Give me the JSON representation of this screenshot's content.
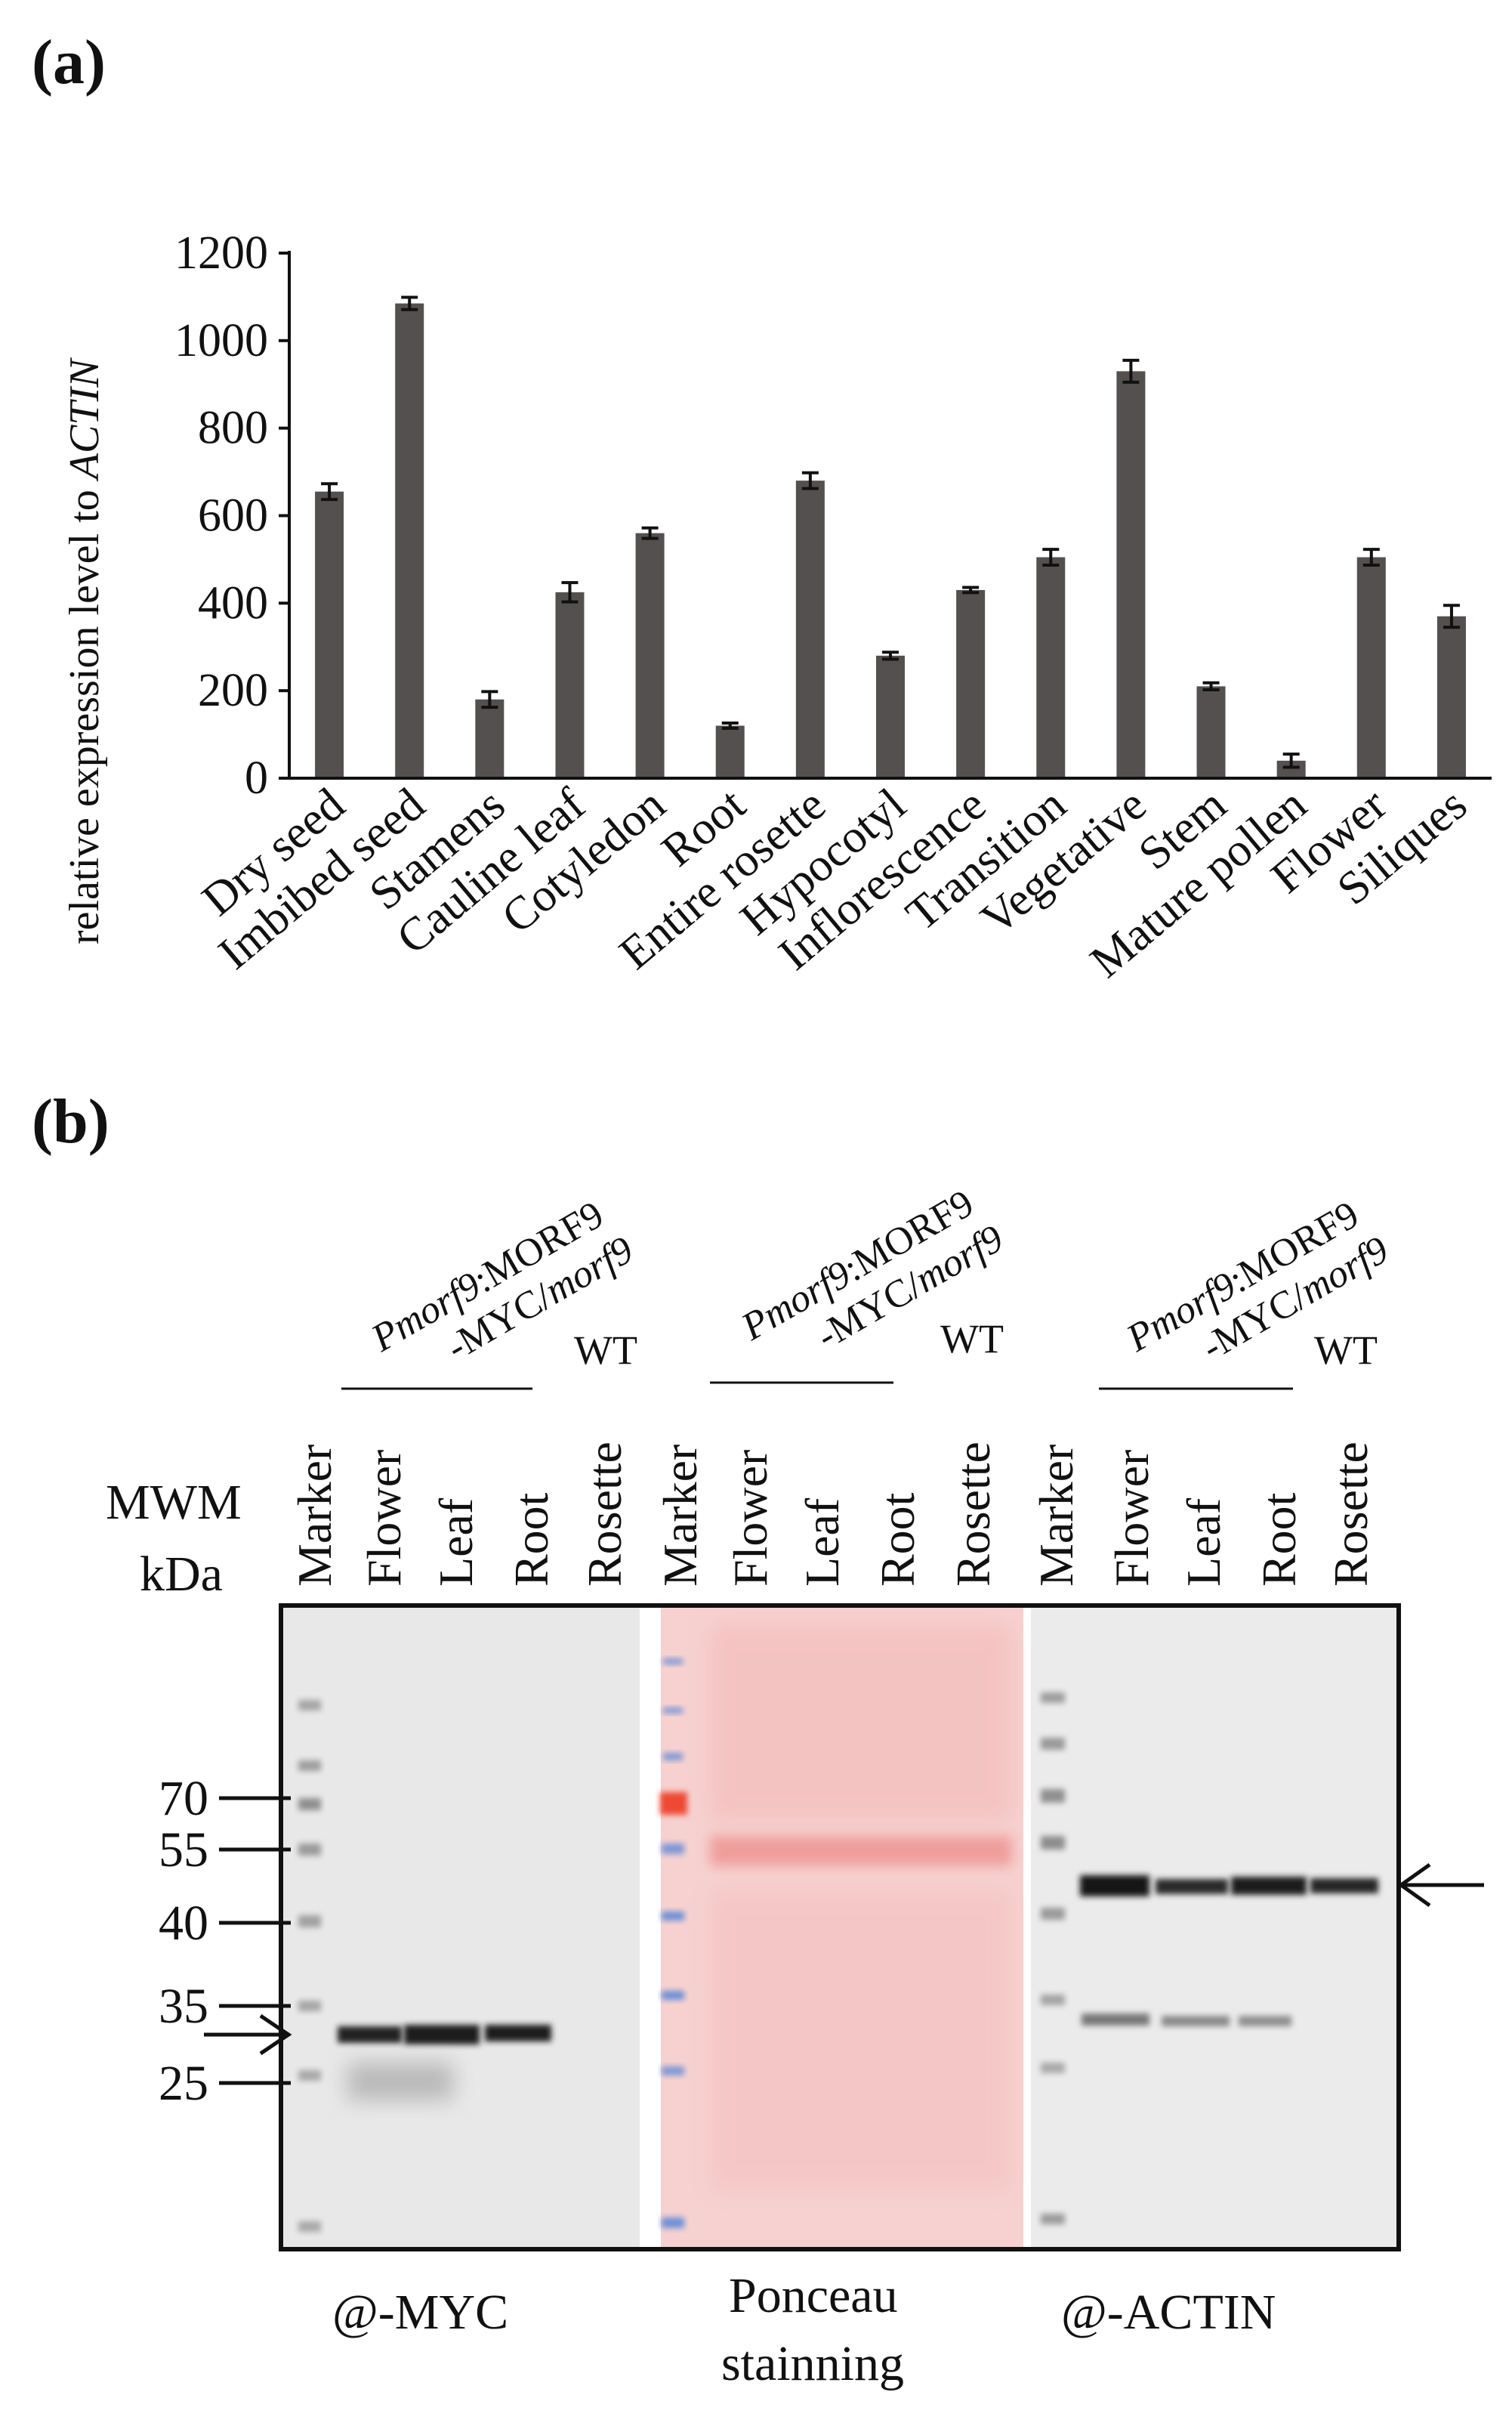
{
  "panel_a": {
    "label": "(a)",
    "ylabel_prefix": "relative expression level to ",
    "ylabel_gene": "ACTIN"
  },
  "chart_data": {
    "type": "bar",
    "title": "",
    "xlabel": "",
    "ylabel": "relative expression level to ACTIN",
    "ylim": [
      0,
      1200
    ],
    "yticks": [
      0,
      200,
      400,
      600,
      800,
      1000,
      1200
    ],
    "categories": [
      "Dry seed",
      "Imbibed seed",
      "Stamens",
      "Cauline leaf",
      "Cotyledon",
      "Root",
      "Entire rosette",
      "Hypocotyl",
      "Inflorescence",
      "Transition",
      "Vegetative",
      "Stem",
      "Mature pollen",
      "Flower",
      "Siliques"
    ],
    "values": [
      655,
      1085,
      180,
      425,
      560,
      120,
      680,
      280,
      430,
      505,
      930,
      210,
      40,
      505,
      370
    ],
    "errors": [
      18,
      14,
      18,
      22,
      12,
      6,
      18,
      8,
      6,
      18,
      25,
      8,
      15,
      18,
      25
    ],
    "grid": false
  },
  "panel_b": {
    "label": "(b)",
    "construct_italic_1": "Pmorf9",
    "construct_rest_1": ":MORF9",
    "construct_line2_a": "-MYC/",
    "construct_line2_italic": "morf9",
    "wt_label": "WT",
    "mwm_line1": "MWM",
    "mwm_line2": "kDa",
    "lanes": [
      "Marker",
      "Flower",
      "Leaf",
      "Root",
      "Rosette"
    ],
    "markers": [
      "70",
      "55",
      "40",
      "35",
      "25"
    ],
    "captions": {
      "myc": "@-MYC",
      "ponceau_1": "Ponceau",
      "ponceau_2": "stainning",
      "actin": "@-ACTIN"
    }
  },
  "colors": {
    "bar": "#555050",
    "ponceau_bg": "#f7d0cf",
    "ponceau_band": "#ef9f9c",
    "ladder_red": "#ee4a33",
    "ladder_blue": "#6b8fd6",
    "blot_bg": "#e9e9e9",
    "band_dark": "#1c1c1c"
  }
}
